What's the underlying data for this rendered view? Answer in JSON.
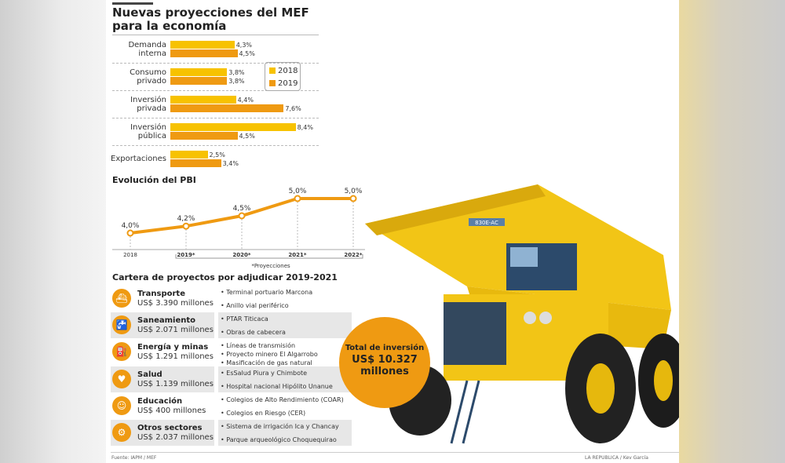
{
  "title": "Nuevas proyecciones del MEF para la economía",
  "title_line1": "Nuevas proyecciones del MEF",
  "title_line2": "para la economía",
  "colors": {
    "y2018": "#f7c200",
    "y2019": "#ef9a12",
    "accent": "#ef9a12"
  },
  "chart_data": [
    {
      "type": "bar",
      "orientation": "horizontal",
      "categories": [
        "Demanda interna",
        "Consumo privado",
        "Inversión privada",
        "Inversión pública",
        "Exportaciones"
      ],
      "series": [
        {
          "name": "2018",
          "values": [
            4.3,
            3.8,
            4.4,
            8.4,
            2.5
          ],
          "labels": [
            "4,3%",
            "3,8%",
            "4,4%",
            "8,4%",
            "2,5%"
          ]
        },
        {
          "name": "2019",
          "values": [
            4.5,
            3.8,
            7.6,
            4.5,
            3.4
          ],
          "labels": [
            "4,5%",
            "3,8%",
            "7,6%",
            "4,5%",
            "3,4%"
          ]
        }
      ],
      "category_lines": [
        [
          "Demanda",
          "interna"
        ],
        [
          "Consumo",
          "privado"
        ],
        [
          "Inversión",
          "privada"
        ],
        [
          "Inversión",
          "pública"
        ],
        [
          "Exportaciones"
        ]
      ],
      "legend": "right"
    },
    {
      "type": "line",
      "title": "Evolución del PBI",
      "x": [
        "2018",
        "2019*",
        "2020*",
        "2021*",
        "2022*"
      ],
      "values": [
        4.0,
        4.2,
        4.5,
        5.0,
        5.0
      ],
      "labels": [
        "4,0%",
        "4,2%",
        "4,5%",
        "5,0%",
        "5,0%"
      ],
      "note": "*Proyecciones"
    }
  ],
  "cartera": {
    "title": "Cartera de proyectos por adjudicar 2019-2021",
    "sectors": [
      {
        "name": "Transporte",
        "amount": "US$ 3.390 millones",
        "icon": "ship-icon",
        "glyph": "⛴",
        "projects": [
          "Terminal portuario Marcona",
          "Anillo vial periférico"
        ]
      },
      {
        "name": "Saneamiento",
        "amount": "US$ 2.071 millones",
        "icon": "faucet-icon",
        "glyph": "🚰",
        "projects": [
          "PTAR Titicaca",
          "Obras de cabecera"
        ]
      },
      {
        "name": "Energía y minas",
        "amount": "US$ 1.291 millones",
        "icon": "oil-pump-icon",
        "glyph": "⛽",
        "projects": [
          "Líneas de transmisión",
          "Proyecto minero El Algarrobo",
          "Masificación de gas natural"
        ]
      },
      {
        "name": "Salud",
        "amount": "US$ 1.139 millones",
        "icon": "heart-plus-icon",
        "glyph": "♥",
        "projects": [
          "EsSalud Piura y Chimbote",
          "Hospital nacional Hipólito Unanue"
        ]
      },
      {
        "name": "Educación",
        "amount": "US$ 400 millones",
        "icon": "student-icon",
        "glyph": "☺",
        "projects": [
          "Colegios de Alto Rendimiento (COAR)",
          "Colegios en Riesgo (CER)"
        ]
      },
      {
        "name": "Otros sectores",
        "amount": "US$ 2.037 millones",
        "icon": "gears-icon",
        "glyph": "⚙",
        "projects": [
          "Sistema de irrigación Ica y Chancay",
          "Parque arqueológico Choquequirao"
        ]
      }
    ]
  },
  "total": {
    "label": "Total de inversión",
    "amount": "US$ 10.327",
    "unit": "millones"
  },
  "truck_badge": "830E-AC",
  "footer": {
    "source": "Fuente: IAPM / MEF",
    "credit": "LA REPUBLICA / Kev García"
  }
}
